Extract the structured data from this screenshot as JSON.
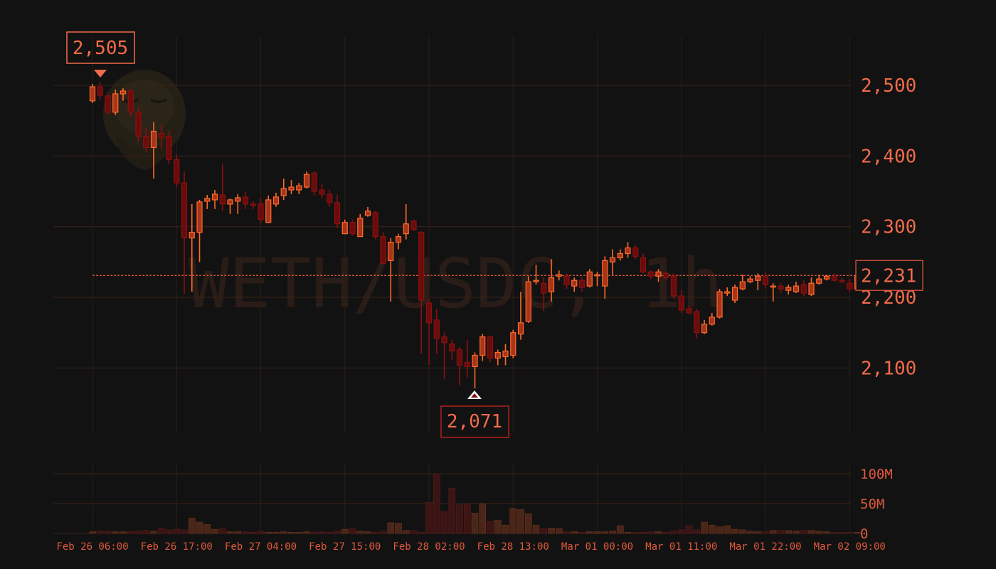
{
  "chart_data": {
    "type": "candlestick",
    "watermark": "WETH/USDC, 1h",
    "price_axis": {
      "ticks": [
        {
          "value": 2500,
          "label": "2,500"
        },
        {
          "value": 2400,
          "label": "2,400"
        },
        {
          "value": 2300,
          "label": "2,300"
        },
        {
          "value": 2200,
          "label": "2,200"
        },
        {
          "value": 2100,
          "label": "2,100"
        }
      ]
    },
    "volume_axis": {
      "ticks": [
        {
          "value": 100000000,
          "label": "100M"
        },
        {
          "value": 50000000,
          "label": "50M"
        },
        {
          "value": 0,
          "label": "0"
        }
      ]
    },
    "time_axis": {
      "ticks": [
        {
          "index": 0,
          "label": "Feb 26 06:00"
        },
        {
          "index": 11,
          "label": "Feb 26 17:00"
        },
        {
          "index": 22,
          "label": "Feb 27 04:00"
        },
        {
          "index": 33,
          "label": "Feb 27 15:00"
        },
        {
          "index": 44,
          "label": "Feb 28 02:00"
        },
        {
          "index": 55,
          "label": "Feb 28 13:00"
        },
        {
          "index": 66,
          "label": "Mar 01 00:00"
        },
        {
          "index": 77,
          "label": "Mar 01 11:00"
        },
        {
          "index": 88,
          "label": "Mar 01 22:00"
        },
        {
          "index": 99,
          "label": "Mar 02 09:00"
        }
      ]
    },
    "current_price": {
      "value": 2231,
      "label": "2,231"
    },
    "high_marker": {
      "index": 1,
      "value": 2505,
      "label": "2,505"
    },
    "low_marker": {
      "index": 50,
      "value": 2071,
      "label": "2,071"
    },
    "candles": [
      [
        2478,
        2498,
        2502,
        2475
      ],
      [
        2498,
        2486,
        2505,
        2480
      ],
      [
        2485,
        2462,
        2490,
        2458
      ],
      [
        2462,
        2488,
        2494,
        2458
      ],
      [
        2488,
        2492,
        2496,
        2478
      ],
      [
        2492,
        2462,
        2495,
        2456
      ],
      [
        2462,
        2428,
        2470,
        2420
      ],
      [
        2428,
        2412,
        2440,
        2405
      ],
      [
        2412,
        2435,
        2448,
        2368
      ],
      [
        2432,
        2426,
        2445,
        2410
      ],
      [
        2428,
        2395,
        2436,
        2388
      ],
      [
        2395,
        2362,
        2402,
        2356
      ],
      [
        2362,
        2284,
        2378,
        2205
      ],
      [
        2284,
        2292,
        2332,
        2208
      ],
      [
        2292,
        2335,
        2338,
        2250
      ],
      [
        2336,
        2340,
        2345,
        2325
      ],
      [
        2338,
        2346,
        2352,
        2325
      ],
      [
        2345,
        2332,
        2388,
        2322
      ],
      [
        2332,
        2338,
        2340,
        2318
      ],
      [
        2336,
        2341,
        2346,
        2318
      ],
      [
        2342,
        2332,
        2350,
        2325
      ],
      [
        2332,
        2330,
        2336,
        2325
      ],
      [
        2332,
        2310,
        2340,
        2305
      ],
      [
        2306,
        2338,
        2344,
        2305
      ],
      [
        2332,
        2342,
        2348,
        2328
      ],
      [
        2344,
        2354,
        2368,
        2338
      ],
      [
        2352,
        2356,
        2366,
        2346
      ],
      [
        2352,
        2358,
        2362,
        2346
      ],
      [
        2356,
        2374,
        2378,
        2354
      ],
      [
        2376,
        2350,
        2378,
        2344
      ],
      [
        2352,
        2346,
        2360,
        2340
      ],
      [
        2346,
        2334,
        2352,
        2328
      ],
      [
        2334,
        2304,
        2345,
        2298
      ],
      [
        2290,
        2306,
        2310,
        2292
      ],
      [
        2306,
        2290,
        2310,
        2288
      ],
      [
        2286,
        2312,
        2318,
        2290
      ],
      [
        2316,
        2322,
        2328,
        2314
      ],
      [
        2320,
        2286,
        2322,
        2282
      ],
      [
        2286,
        2248,
        2292,
        2250
      ],
      [
        2252,
        2278,
        2284,
        2194
      ],
      [
        2278,
        2286,
        2290,
        2268
      ],
      [
        2290,
        2304,
        2332,
        2282
      ],
      [
        2308,
        2296,
        2310,
        2294
      ],
      [
        2292,
        2196,
        2294,
        2120
      ],
      [
        2192,
        2164,
        2198,
        2104
      ],
      [
        2168,
        2142,
        2184,
        2120
      ],
      [
        2144,
        2136,
        2150,
        2084
      ],
      [
        2134,
        2124,
        2140,
        2112
      ],
      [
        2126,
        2104,
        2130,
        2075
      ],
      [
        2108,
        2102,
        2140,
        2086
      ],
      [
        2102,
        2118,
        2122,
        2071
      ],
      [
        2118,
        2144,
        2148,
        2110
      ],
      [
        2144,
        2114,
        2146,
        2108
      ],
      [
        2114,
        2122,
        2126,
        2104
      ],
      [
        2116,
        2124,
        2134,
        2104
      ],
      [
        2118,
        2150,
        2154,
        2114
      ],
      [
        2148,
        2164,
        2208,
        2140
      ],
      [
        2166,
        2222,
        2230,
        2164
      ],
      [
        2222,
        2224,
        2246,
        2218
      ],
      [
        2220,
        2206,
        2228,
        2180
      ],
      [
        2208,
        2228,
        2254,
        2194
      ],
      [
        2230,
        2232,
        2238,
        2224
      ],
      [
        2230,
        2218,
        2234,
        2212
      ],
      [
        2216,
        2224,
        2228,
        2208
      ],
      [
        2224,
        2214,
        2228,
        2208
      ],
      [
        2216,
        2236,
        2240,
        2214
      ],
      [
        2232,
        2232,
        2236,
        2216
      ],
      [
        2216,
        2252,
        2258,
        2198
      ],
      [
        2250,
        2256,
        2268,
        2232
      ],
      [
        2256,
        2262,
        2268,
        2252
      ],
      [
        2262,
        2270,
        2278,
        2256
      ],
      [
        2270,
        2258,
        2274,
        2254
      ],
      [
        2256,
        2236,
        2262,
        2234
      ],
      [
        2236,
        2230,
        2238,
        2226
      ],
      [
        2230,
        2236,
        2240,
        2222
      ],
      [
        2234,
        2228,
        2236,
        2224
      ],
      [
        2230,
        2202,
        2234,
        2198
      ],
      [
        2202,
        2182,
        2210,
        2178
      ],
      [
        2184,
        2178,
        2188,
        2176
      ],
      [
        2180,
        2150,
        2184,
        2142
      ],
      [
        2150,
        2162,
        2168,
        2148
      ],
      [
        2162,
        2172,
        2178,
        2160
      ],
      [
        2172,
        2208,
        2212,
        2170
      ],
      [
        2206,
        2208,
        2214,
        2202
      ],
      [
        2196,
        2214,
        2218,
        2192
      ],
      [
        2212,
        2222,
        2232,
        2210
      ],
      [
        2222,
        2226,
        2230,
        2220
      ],
      [
        2224,
        2230,
        2234,
        2210
      ],
      [
        2230,
        2218,
        2236,
        2212
      ],
      [
        2216,
        2216,
        2220,
        2194
      ],
      [
        2216,
        2212,
        2220,
        2206
      ],
      [
        2210,
        2214,
        2218,
        2204
      ],
      [
        2208,
        2216,
        2222,
        2206
      ],
      [
        2218,
        2206,
        2224,
        2202
      ],
      [
        2204,
        2220,
        2228,
        2202
      ],
      [
        2220,
        2226,
        2232,
        2218
      ],
      [
        2226,
        2230,
        2232,
        2224
      ],
      [
        2230,
        2224,
        2234,
        2222
      ],
      [
        2224,
        2222,
        2228,
        2220
      ],
      [
        2220,
        2212,
        2226,
        2208
      ],
      [
        2212,
        2231,
        2236,
        2210
      ]
    ],
    "volume": [
      3,
      4,
      4,
      3,
      3,
      3,
      4,
      5,
      4,
      9,
      6,
      7,
      6,
      26,
      19,
      15,
      7,
      8,
      3,
      3,
      3,
      2,
      4,
      2,
      2,
      3,
      2,
      2,
      3,
      2,
      3,
      2,
      4,
      7,
      8,
      4,
      3,
      2,
      4,
      18,
      17,
      5,
      5,
      2,
      52,
      100,
      37,
      76,
      48,
      49,
      34,
      50,
      20,
      22,
      14,
      42,
      40,
      33,
      14,
      8,
      9,
      8,
      3,
      3,
      2,
      3,
      3,
      3,
      4,
      13,
      2,
      2,
      2,
      3,
      3,
      2,
      4,
      6,
      13,
      6,
      19,
      14,
      11,
      13,
      7,
      6,
      4,
      3,
      3,
      5,
      5,
      5,
      4,
      5,
      5,
      4,
      3,
      2,
      2,
      2,
      2
    ]
  }
}
